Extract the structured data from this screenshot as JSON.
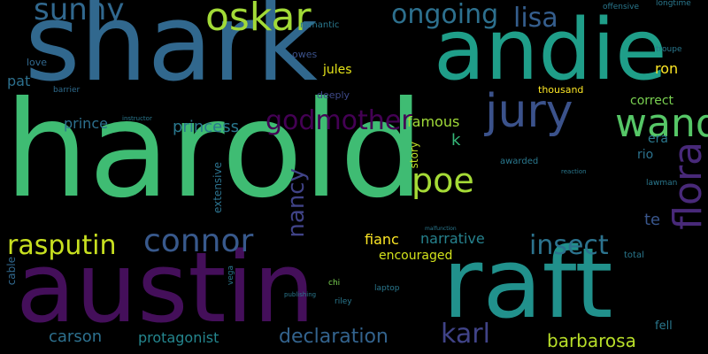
{
  "words": [
    {
      "id": "harold",
      "text": "harold",
      "color": "#3fbc73"
    },
    {
      "id": "austin",
      "text": "austin",
      "color": "#440f5a"
    },
    {
      "id": "shark",
      "text": "shark",
      "color": "#31688e"
    },
    {
      "id": "andie",
      "text": "andie",
      "color": "#1f9e89"
    },
    {
      "id": "raft",
      "text": "raft",
      "color": "#21918c"
    },
    {
      "id": "jury",
      "text": "jury",
      "color": "#3b528b"
    },
    {
      "id": "oskar",
      "text": "oskar",
      "color": "#a2da37"
    },
    {
      "id": "wand",
      "text": "wand",
      "color": "#56c667"
    },
    {
      "id": "connor",
      "text": "connor",
      "color": "#38598c"
    },
    {
      "id": "rasputin",
      "text": "rasputin",
      "color": "#c8e020"
    },
    {
      "id": "insect",
      "text": "insect",
      "color": "#2c738e"
    },
    {
      "id": "flora",
      "text": "flora",
      "color": "#482979"
    },
    {
      "id": "poe",
      "text": "poe",
      "color": "#a5db36"
    },
    {
      "id": "godmother",
      "text": "godmother",
      "color": "#440154"
    },
    {
      "id": "sunny",
      "text": "sunny",
      "color": "#31688e"
    },
    {
      "id": "ongoing",
      "text": "ongoing",
      "color": "#2d708e"
    },
    {
      "id": "lisa",
      "text": "lisa",
      "color": "#355e8d"
    },
    {
      "id": "declaration",
      "text": "declaration",
      "color": "#33638d"
    },
    {
      "id": "karl",
      "text": "karl",
      "color": "#404387"
    },
    {
      "id": "carson",
      "text": "carson",
      "color": "#2d708e"
    },
    {
      "id": "barbarosa",
      "text": "barbarosa",
      "color": "#b8de29"
    },
    {
      "id": "nancy",
      "text": "nancy",
      "color": "#404387"
    },
    {
      "id": "protagonist",
      "text": "protagonist",
      "color": "#24868e"
    },
    {
      "id": "princess",
      "text": "princess",
      "color": "#2a788e"
    },
    {
      "id": "prince",
      "text": "prince",
      "color": "#2d708e"
    },
    {
      "id": "narrative",
      "text": "narrative",
      "color": "#26828e"
    },
    {
      "id": "encouraged",
      "text": "encouraged",
      "color": "#d2e21b"
    },
    {
      "id": "fianc",
      "text": "fianc",
      "color": "#fde725"
    },
    {
      "id": "famous",
      "text": "famous",
      "color": "#a0da39"
    },
    {
      "id": "correct",
      "text": "correct",
      "color": "#7ad151"
    },
    {
      "id": "era",
      "text": "era",
      "color": "#2a788e"
    },
    {
      "id": "rio",
      "text": "rio",
      "color": "#2c728e"
    },
    {
      "id": "te",
      "text": "te",
      "color": "#39568c"
    },
    {
      "id": "ron",
      "text": "ron",
      "color": "#fde725"
    },
    {
      "id": "thousand",
      "text": "thousand",
      "color": "#fde725"
    },
    {
      "id": "jules",
      "text": "jules",
      "color": "#e5e419"
    },
    {
      "id": "pat",
      "text": "pat",
      "color": "#2d708e"
    },
    {
      "id": "love",
      "text": "love",
      "color": "#31688e"
    },
    {
      "id": "romantic",
      "text": "romantic",
      "color": "#2a788e"
    },
    {
      "id": "owes",
      "text": "owes",
      "color": "#3b528b"
    },
    {
      "id": "deeply",
      "text": "deeply",
      "color": "#3e4989"
    },
    {
      "id": "barrier",
      "text": "barrier",
      "color": "#2f6c8e"
    },
    {
      "id": "k",
      "text": "k",
      "color": "#35b779"
    },
    {
      "id": "story",
      "text": "story",
      "color": "#c0df25"
    },
    {
      "id": "extensive",
      "text": "extensive",
      "color": "#2c728e"
    },
    {
      "id": "cable",
      "text": "cable",
      "color": "#31688e"
    },
    {
      "id": "chi",
      "text": "chi",
      "color": "#7ad151"
    },
    {
      "id": "riley",
      "text": "riley",
      "color": "#2a788e"
    },
    {
      "id": "laptop",
      "text": "laptop",
      "color": "#2a788e"
    },
    {
      "id": "vega",
      "text": "vega",
      "color": "#2a788e"
    },
    {
      "id": "awarded",
      "text": "awarded",
      "color": "#2a788e"
    },
    {
      "id": "fell",
      "text": "fell",
      "color": "#2a788e"
    },
    {
      "id": "total",
      "text": "total",
      "color": "#2a788e"
    },
    {
      "id": "lawman",
      "text": "lawman",
      "color": "#2a788e"
    },
    {
      "id": "longtime",
      "text": "longtime",
      "color": "#2a788e"
    },
    {
      "id": "offensive",
      "text": "offensive",
      "color": "#2a788e"
    },
    {
      "id": "troupe",
      "text": "troupe",
      "color": "#2a788e"
    },
    {
      "id": "reaction",
      "text": "reaction",
      "color": "#2a788e"
    },
    {
      "id": "publishing",
      "text": "publishing",
      "color": "#2a788e"
    },
    {
      "id": "instructor",
      "text": "instructor",
      "color": "#2a788e"
    },
    {
      "id": "malfunction",
      "text": "malfunction",
      "color": "#2a788e"
    }
  ]
}
